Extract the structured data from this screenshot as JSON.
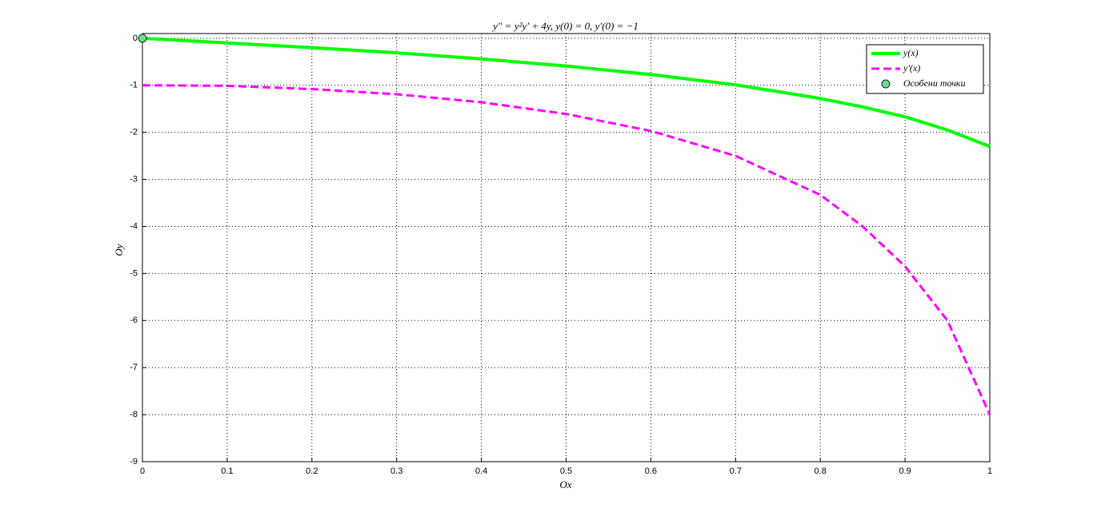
{
  "chart_data": {
    "type": "line",
    "title": "y′′ = y²y′ + 4y,    y(0) = 0,    y′(0) = −1",
    "xlabel": "Ox",
    "ylabel": "Oy",
    "x": [
      0,
      0.1,
      0.2,
      0.3,
      0.4,
      0.5,
      0.6,
      0.7,
      0.8,
      0.85,
      0.9,
      0.95,
      1
    ],
    "series": [
      {
        "name": "y(x)",
        "color": "#00ff00",
        "line_style": "solid",
        "values": [
          0,
          -0.1,
          -0.2,
          -0.31,
          -0.44,
          -0.59,
          -0.77,
          -0.99,
          -1.28,
          -1.46,
          -1.67,
          -1.95,
          -2.3
        ]
      },
      {
        "name": "y'(x)",
        "color": "#ff00ff",
        "line_style": "dashed",
        "values": [
          -1,
          -1.01,
          -1.08,
          -1.19,
          -1.36,
          -1.61,
          -1.97,
          -2.5,
          -3.33,
          -4.0,
          -4.85,
          -6.0,
          -8.0
        ]
      }
    ],
    "points": {
      "name": "Особени точки",
      "color": "#66e08a",
      "x": [
        0
      ],
      "values": [
        0
      ]
    },
    "xlim": [
      0,
      1
    ],
    "ylim": [
      -9,
      0.1
    ],
    "xticks": [
      0,
      0.1,
      0.2,
      0.3,
      0.4,
      0.5,
      0.6,
      0.7,
      0.8,
      0.9,
      1
    ],
    "yticks": [
      0,
      -1,
      -2,
      -3,
      -4,
      -5,
      -6,
      -7,
      -8,
      -9
    ],
    "grid": true,
    "legend": "upper right"
  }
}
